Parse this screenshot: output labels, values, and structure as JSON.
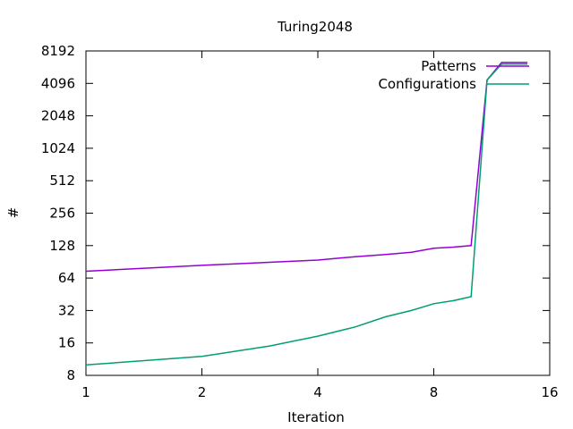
{
  "chart_data": {
    "type": "line",
    "title": "Turing2048",
    "xlabel": "Iteration",
    "ylabel": "#",
    "x_scale": "log2",
    "y_scale": "log2",
    "xlim": [
      1,
      16
    ],
    "ylim": [
      8,
      8192
    ],
    "x_ticks": [
      1,
      2,
      4,
      8,
      16
    ],
    "x_tick_labels": [
      "1",
      "2",
      "4",
      "8",
      "16"
    ],
    "y_ticks": [
      8,
      16,
      32,
      64,
      128,
      256,
      512,
      1024,
      2048,
      4096,
      8192
    ],
    "y_tick_labels": [
      "8",
      "16",
      "32",
      "64",
      "128",
      "256",
      "512",
      "1024",
      "2048",
      "4096",
      "8192"
    ],
    "grid": false,
    "legend_position": "top-right",
    "series": [
      {
        "name": "Patterns",
        "color": "#9400d3",
        "x": [
          1,
          2,
          4,
          5,
          6,
          7,
          8,
          9,
          10,
          11,
          12,
          14
        ],
        "y": [
          74,
          84,
          94,
          101,
          106,
          111,
          121,
          124,
          128,
          4400,
          6400,
          6400
        ]
      },
      {
        "name": "Configurations",
        "color": "#009e73",
        "x": [
          1,
          2,
          3,
          4,
          5,
          6,
          7,
          8,
          9,
          10,
          11,
          12,
          14
        ],
        "y": [
          10,
          12,
          15,
          18.5,
          22.5,
          28,
          32,
          37,
          39.5,
          43,
          4400,
          6200,
          6200
        ]
      }
    ]
  }
}
